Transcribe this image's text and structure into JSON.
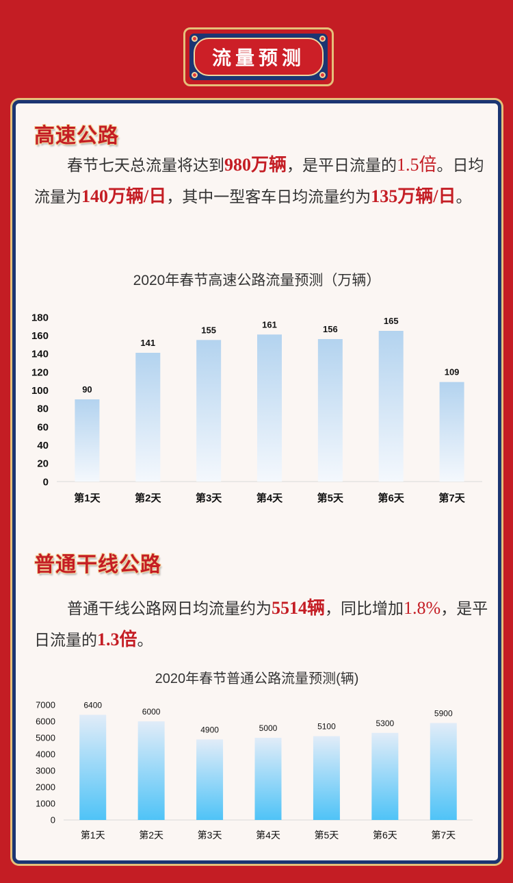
{
  "header": {
    "title": "流量预测"
  },
  "highway": {
    "heading": "高速公路",
    "paragraph": {
      "t1": "春节七天总流量将达到",
      "v1": "980万辆",
      "t2": "，是平日流量的",
      "v2": "1.5倍",
      "t3": "。日均流量为",
      "v3": "140万辆/日",
      "t4": "，其中一型客车日均流量约为",
      "v4": "135万辆/日",
      "t5": "。"
    }
  },
  "road": {
    "heading": "普通干线公路",
    "paragraph": {
      "t1": "普通干线公路网日均流量约为",
      "v1": "5514辆",
      "t2": "，同比增加",
      "v2": "1.8%",
      "t3": "，是平日流量的",
      "v3": "1.3倍",
      "t4": "。"
    }
  },
  "colors": {
    "accent": "#c41d24",
    "navy": "#1b3572",
    "gold": "#e6c07a",
    "card": "#fbf6f3"
  },
  "chart_data": [
    {
      "type": "bar",
      "title": "2020年春节高速公路流量预测（万辆）",
      "categories": [
        "第1天",
        "第2天",
        "第3天",
        "第4天",
        "第5天",
        "第6天",
        "第7天"
      ],
      "values": [
        90,
        141,
        155,
        161,
        156,
        165,
        109
      ],
      "ylim": [
        0,
        180
      ],
      "yticks": [
        0,
        20,
        40,
        60,
        80,
        100,
        120,
        140,
        160,
        180
      ],
      "xlabel": "",
      "ylabel": "",
      "grid": false,
      "bar_color_top": "#b3d3ef",
      "bar_color_bottom": "#f4f8fd"
    },
    {
      "type": "bar",
      "title": "2020年春节普通公路流量预测(辆)",
      "categories": [
        "第1天",
        "第2天",
        "第3天",
        "第4天",
        "第5天",
        "第6天",
        "第7天"
      ],
      "values": [
        6400,
        6000,
        4900,
        5000,
        5100,
        5300,
        5900
      ],
      "ylim": [
        0,
        7000
      ],
      "yticks": [
        0,
        1000,
        2000,
        3000,
        4000,
        5000,
        6000,
        7000
      ],
      "xlabel": "",
      "ylabel": "",
      "grid": false,
      "bar_color_top": "#e1ecf8",
      "bar_color_bottom": "#4fc3f7"
    }
  ]
}
